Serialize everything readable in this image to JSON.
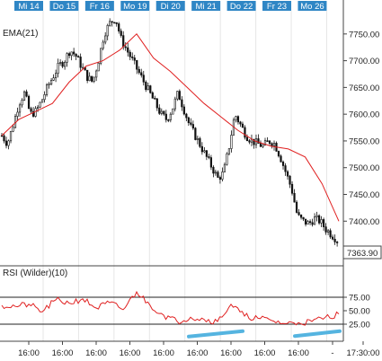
{
  "colors": {
    "candle": "#111111",
    "ema": "#e02020",
    "rsi": "#e02020",
    "trendline": "#55b4e0",
    "tag_bg": "#2f86c5",
    "grid": "#e6e6e6",
    "axis": "#444444"
  },
  "header": {
    "ema_label": "EMA(21)",
    "rsi_label": "RSI (Wilder)(10)"
  },
  "chart_data": [
    {
      "type": "candlestick",
      "name": "price",
      "ylim": [
        7340,
        7790
      ],
      "yticks": [
        7400,
        7450,
        7500,
        7550,
        7600,
        7650,
        7700,
        7750
      ],
      "ytick_labels": [
        "7400.00",
        "7450.00",
        "7500.00",
        "7550.00",
        "7600.00",
        "7650.00",
        "7700.00",
        "7750.00"
      ],
      "last_price_label": "7363.90",
      "date_tags": [
        "Mi 14",
        "Do 15",
        "Fr 16",
        "Mo 19",
        "Di 20",
        "Mi 21",
        "Do 22",
        "Fr 23",
        "Mo 26"
      ],
      "x_labels": [
        "16:00",
        "16:00",
        "16:00",
        "16:00",
        "16:00",
        "16:00",
        "16:00",
        "16:00",
        "16:00",
        "-",
        "17:30:00"
      ],
      "close_path": [
        7560,
        7545,
        7580,
        7620,
        7640,
        7600,
        7605,
        7625,
        7650,
        7670,
        7690,
        7700,
        7720,
        7710,
        7690,
        7670,
        7660,
        7700,
        7750,
        7770,
        7780,
        7740,
        7720,
        7700,
        7680,
        7660,
        7640,
        7620,
        7600,
        7590,
        7610,
        7640,
        7610,
        7580,
        7560,
        7540,
        7520,
        7500,
        7480,
        7490,
        7540,
        7600,
        7580,
        7560,
        7550,
        7545,
        7540,
        7550,
        7545,
        7520,
        7490,
        7460,
        7410,
        7400,
        7395,
        7405,
        7400,
        7385,
        7375,
        7365
      ]
    },
    {
      "type": "line",
      "name": "EMA(21)",
      "x": [
        0,
        0.05,
        0.1,
        0.15,
        0.2,
        0.25,
        0.3,
        0.35,
        0.4,
        0.45,
        0.5,
        0.55,
        0.6,
        0.65,
        0.7,
        0.75,
        0.8,
        0.85,
        0.9,
        0.95,
        1
      ],
      "y": [
        7560,
        7590,
        7605,
        7620,
        7660,
        7690,
        7700,
        7720,
        7750,
        7705,
        7680,
        7650,
        7620,
        7595,
        7570,
        7550,
        7540,
        7535,
        7520,
        7470,
        7400
      ]
    },
    {
      "type": "line",
      "name": "RSI (Wilder)(10)",
      "ylim": [
        0,
        100
      ],
      "yticks": [
        25,
        50,
        75
      ],
      "ytick_labels": [
        "25.00",
        "50.00",
        "75.00"
      ],
      "x": [
        0,
        0.04,
        0.08,
        0.12,
        0.16,
        0.2,
        0.24,
        0.28,
        0.32,
        0.36,
        0.4,
        0.44,
        0.48,
        0.52,
        0.56,
        0.6,
        0.64,
        0.68,
        0.72,
        0.76,
        0.8,
        0.84,
        0.88,
        0.92,
        0.96,
        1
      ],
      "y": [
        60,
        58,
        62,
        48,
        70,
        64,
        72,
        55,
        65,
        52,
        85,
        60,
        42,
        30,
        38,
        34,
        30,
        62,
        40,
        36,
        32,
        26,
        28,
        30,
        38,
        44
      ]
    }
  ]
}
